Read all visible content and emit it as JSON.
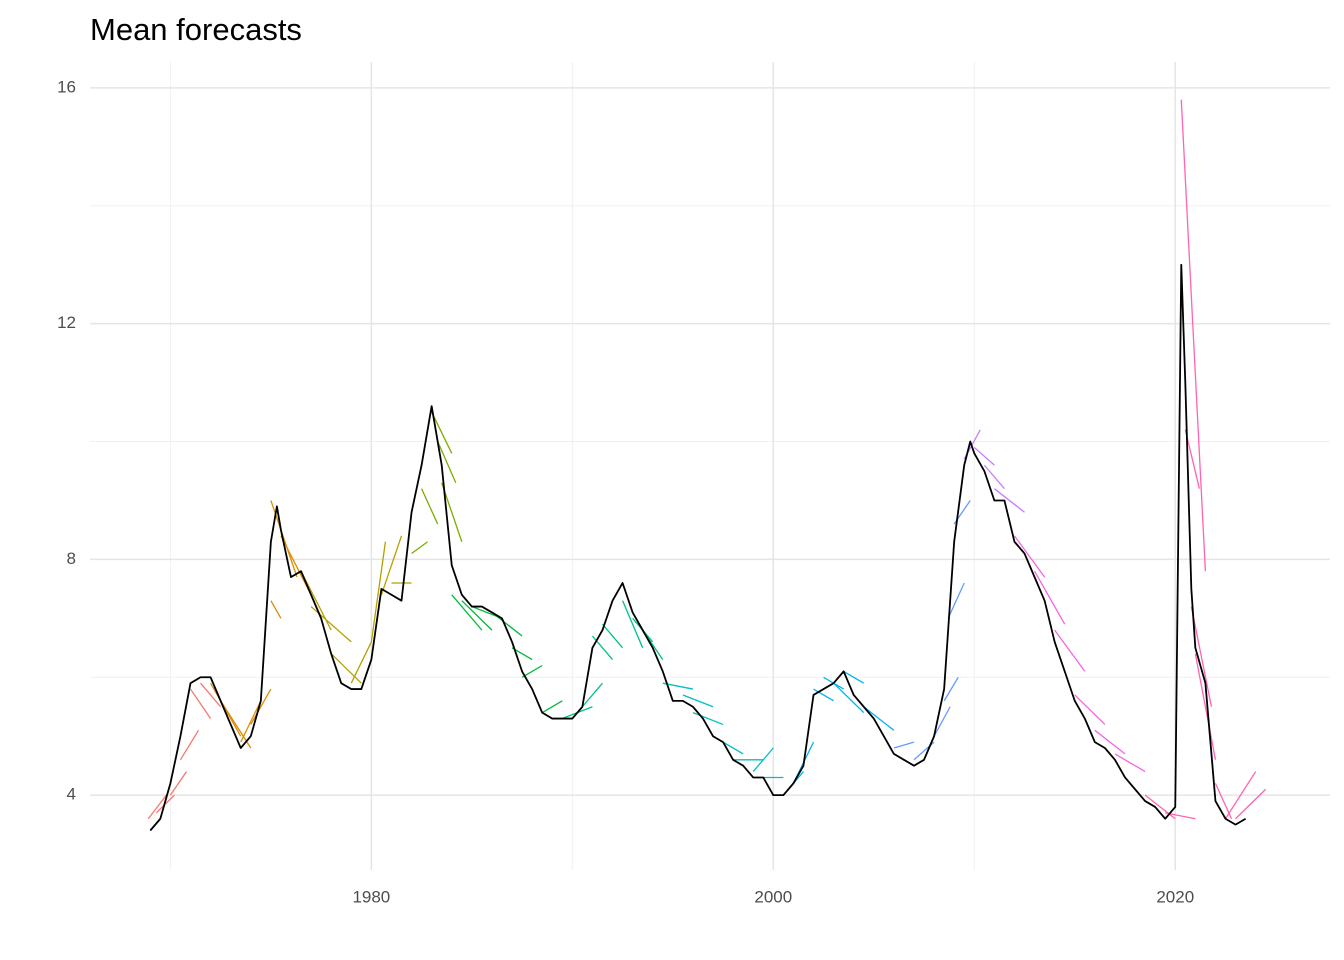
{
  "chart_data": {
    "type": "line",
    "title": "Mean forecasts",
    "xlim": [
      1966.0,
      2027.7
    ],
    "ylim": [
      2.73,
      16.44
    ],
    "xticks": [
      1980,
      2000,
      2020
    ],
    "yticks": [
      4,
      8,
      12,
      16
    ],
    "x_minor_grid": [
      1970,
      1990,
      2010
    ],
    "y_minor_grid": [
      6,
      10,
      14
    ],
    "grid": true,
    "series": [
      {
        "color": "#000000",
        "x": [
          1969.0,
          1969.5,
          1970.0,
          1970.5,
          1971.0,
          1971.5,
          1972.0,
          1972.5,
          1973.0,
          1973.5,
          1974.0,
          1974.5,
          1975.0,
          1975.3,
          1975.5,
          1976.0,
          1976.5,
          1977.0,
          1977.5,
          1978.0,
          1978.5,
          1979.0,
          1979.5,
          1980.0,
          1980.5,
          1981.0,
          1981.5,
          1982.0,
          1982.5,
          1983.0,
          1983.5,
          1984.0,
          1984.5,
          1985.0,
          1985.5,
          1986.0,
          1986.5,
          1987.0,
          1987.5,
          1988.0,
          1988.5,
          1989.0,
          1989.5,
          1990.0,
          1990.5,
          1991.0,
          1991.5,
          1992.0,
          1992.5,
          1993.0,
          1993.5,
          1994.0,
          1994.5,
          1995.0,
          1995.5,
          1996.0,
          1996.5,
          1997.0,
          1997.5,
          1998.0,
          1998.5,
          1999.0,
          1999.5,
          2000.0,
          2000.5,
          2001.0,
          2001.5,
          2002.0,
          2002.5,
          2003.0,
          2003.5,
          2004.0,
          2004.5,
          2005.0,
          2005.5,
          2006.0,
          2006.5,
          2007.0,
          2007.5,
          2008.0,
          2008.5,
          2009.0,
          2009.5,
          2009.8,
          2010.0,
          2010.5,
          2011.0,
          2011.5,
          2012.0,
          2012.5,
          2013.0,
          2013.5,
          2014.0,
          2014.5,
          2015.0,
          2015.5,
          2016.0,
          2016.5,
          2017.0,
          2017.5,
          2018.0,
          2018.5,
          2019.0,
          2019.5,
          2020.0,
          2020.3,
          2020.5,
          2020.8,
          2021.0,
          2021.5,
          2022.0,
          2022.5,
          2023.0,
          2023.5
        ],
        "values": [
          3.4,
          3.6,
          4.2,
          5.0,
          5.9,
          6.0,
          6.0,
          5.6,
          5.2,
          4.8,
          5.0,
          5.6,
          8.3,
          8.9,
          8.5,
          7.7,
          7.8,
          7.4,
          7.0,
          6.4,
          5.9,
          5.8,
          5.8,
          6.3,
          7.5,
          7.4,
          7.3,
          8.8,
          9.6,
          10.6,
          9.6,
          7.9,
          7.4,
          7.2,
          7.2,
          7.1,
          7.0,
          6.6,
          6.1,
          5.8,
          5.4,
          5.3,
          5.3,
          5.3,
          5.5,
          6.5,
          6.8,
          7.3,
          7.6,
          7.1,
          6.8,
          6.5,
          6.1,
          5.6,
          5.6,
          5.5,
          5.3,
          5.0,
          4.9,
          4.6,
          4.5,
          4.3,
          4.3,
          4.0,
          4.0,
          4.2,
          4.5,
          5.7,
          5.8,
          5.9,
          6.1,
          5.7,
          5.5,
          5.3,
          5.0,
          4.7,
          4.6,
          4.5,
          4.6,
          5.0,
          5.8,
          8.3,
          9.6,
          10.0,
          9.8,
          9.5,
          9.0,
          9.0,
          8.3,
          8.1,
          7.7,
          7.3,
          6.6,
          6.1,
          5.6,
          5.3,
          4.9,
          4.8,
          4.6,
          4.3,
          4.1,
          3.9,
          3.8,
          3.6,
          3.8,
          13.0,
          11.0,
          7.5,
          6.5,
          5.9,
          3.9,
          3.6,
          3.5,
          3.6
        ]
      },
      {
        "color": "#F8766D",
        "x": [
          1968.9,
          1969.8,
          null,
          1969.3,
          1970.2,
          null,
          1970.0,
          1970.8,
          null,
          1970.5,
          1971.4,
          null,
          1971.0,
          1972.0,
          null,
          1971.5,
          1972.5
        ],
        "values": [
          3.6,
          4.0,
          null,
          3.7,
          4.0,
          null,
          4.0,
          4.4,
          null,
          4.6,
          5.1,
          null,
          5.8,
          5.3,
          null,
          5.9,
          5.5
        ]
      },
      {
        "color": "#DE8C00",
        "x": [
          1972.0,
          1973.5,
          null,
          1972.5,
          1974.0,
          null,
          1973.5,
          1974.5,
          null,
          1974.0,
          1975.0,
          null,
          1975.0,
          1976.3,
          null,
          1975.5,
          1977.0,
          null,
          1975.0,
          1975.5
        ],
        "values": [
          5.9,
          5.0,
          null,
          5.6,
          4.8,
          null,
          4.9,
          5.6,
          null,
          5.2,
          5.8,
          null,
          9.0,
          7.7,
          null,
          8.4,
          7.4,
          null,
          7.3,
          7.0
        ]
      },
      {
        "color": "#B79F00",
        "x": [
          1976.5,
          1978.0,
          null,
          1977.0,
          1979.0,
          null,
          1978.0,
          1979.5,
          null,
          1979.0,
          1980.0,
          null,
          1980.0,
          1980.7,
          null,
          1980.5,
          1981.5,
          null,
          1981.0,
          1982.0
        ],
        "values": [
          7.8,
          6.8,
          null,
          7.2,
          6.6,
          null,
          6.4,
          5.9,
          null,
          5.9,
          6.6,
          null,
          6.6,
          8.3,
          null,
          7.4,
          8.4,
          null,
          7.6,
          7.6
        ]
      },
      {
        "color": "#7CAE00",
        "x": [
          1982.0,
          1982.8,
          null,
          1982.5,
          1983.3,
          null,
          1983.0,
          1984.0,
          null,
          1983.3,
          1984.2,
          null,
          1983.5,
          1984.5
        ],
        "values": [
          8.1,
          8.3,
          null,
          9.2,
          8.6,
          null,
          10.5,
          9.8,
          null,
          10.0,
          9.3,
          null,
          9.3,
          8.3
        ]
      },
      {
        "color": "#00BA38",
        "x": [
          1984.0,
          1985.5,
          null,
          1984.5,
          1986.0,
          null,
          1985.0,
          1986.5,
          null,
          1986.0,
          1987.5,
          null,
          1987.0,
          1988.0,
          null,
          1987.5,
          1988.5,
          null,
          1988.5,
          1989.5
        ],
        "values": [
          7.4,
          6.8,
          null,
          7.3,
          6.8,
          null,
          7.2,
          7.0,
          null,
          7.1,
          6.7,
          null,
          6.5,
          6.3,
          null,
          6.0,
          6.2,
          null,
          5.4,
          5.6
        ]
      },
      {
        "color": "#00C08B",
        "x": [
          1989.5,
          1991.0,
          null,
          1990.5,
          1991.5,
          null,
          1991.0,
          1992.0,
          null,
          1991.5,
          1992.5,
          null,
          1992.5,
          1993.5,
          null,
          1993.0,
          1994.0,
          null,
          1993.5,
          1994.5
        ],
        "values": [
          5.3,
          5.5,
          null,
          5.5,
          5.9,
          null,
          6.7,
          6.3,
          null,
          6.9,
          6.5,
          null,
          7.3,
          6.5,
          null,
          7.0,
          6.6,
          null,
          6.8,
          6.3
        ]
      },
      {
        "color": "#00BFC4",
        "x": [
          1994.5,
          1996.0,
          null,
          1995.5,
          1997.0,
          null,
          1996.0,
          1997.5,
          null,
          1997.0,
          1998.5,
          null,
          1998.0,
          1999.5,
          null,
          1999.0,
          2000.0,
          null,
          1999.5,
          2000.5
        ],
        "values": [
          5.9,
          5.8,
          null,
          5.7,
          5.5,
          null,
          5.4,
          5.2,
          null,
          5.0,
          4.7,
          null,
          4.6,
          4.6,
          null,
          4.4,
          4.8,
          null,
          4.3,
          4.3
        ]
      },
      {
        "color": "#00B4F0",
        "x": [
          2000.5,
          2001.5,
          null,
          2001.0,
          2002.0,
          null,
          2002.0,
          2003.0,
          null,
          2002.5,
          2003.5,
          null,
          2003.0,
          2004.5,
          null,
          2003.5,
          2004.5,
          null,
          2004.5,
          2006.0
        ],
        "values": [
          4.0,
          4.4,
          null,
          4.2,
          4.9,
          null,
          5.8,
          5.6,
          null,
          6.0,
          5.8,
          null,
          5.9,
          5.4,
          null,
          6.1,
          5.9,
          null,
          5.5,
          5.1
        ]
      },
      {
        "color": "#619CFF",
        "x": [
          2006.0,
          2007.0,
          null,
          2007.0,
          2008.0,
          null,
          2008.0,
          2008.8,
          null,
          2008.5,
          2009.2,
          null,
          2008.7,
          2009.5,
          null,
          2009.0,
          2009.8
        ],
        "values": [
          4.8,
          4.9,
          null,
          4.6,
          4.9,
          null,
          5.0,
          5.5,
          null,
          5.6,
          6.0,
          null,
          7.0,
          7.6,
          null,
          8.6,
          9.0
        ]
      },
      {
        "color": "#C77CFF",
        "x": [
          2009.5,
          2010.3,
          null,
          2010.0,
          2011.0,
          null,
          2010.5,
          2011.5,
          null,
          2011.0,
          2012.5
        ],
        "values": [
          9.7,
          10.2,
          null,
          9.9,
          9.6,
          null,
          9.6,
          9.2,
          null,
          9.2,
          8.8
        ]
      },
      {
        "color": "#F564E3",
        "x": [
          2012.0,
          2013.5,
          null,
          2013.0,
          2014.5,
          null,
          2014.0,
          2015.5,
          null,
          2015.0,
          2016.5,
          null,
          2016.0,
          2017.5,
          null,
          2017.0,
          2018.5
        ],
        "values": [
          8.4,
          7.7,
          null,
          7.8,
          6.9,
          null,
          6.8,
          6.1,
          null,
          5.7,
          5.2,
          null,
          5.1,
          4.7,
          null,
          4.7,
          4.4
        ]
      },
      {
        "color": "#FF64B0",
        "x": [
          2018.5,
          2020.0,
          null,
          2019.5,
          2021.0,
          null,
          2020.3,
          2021.5,
          null,
          2020.5,
          2021.2,
          null,
          2020.8,
          2021.8,
          null,
          2021.0,
          2022.0,
          null,
          2022.0,
          2022.8,
          null,
          2022.5,
          2024.0,
          null,
          2023.0,
          2024.5
        ],
        "values": [
          4.0,
          3.6,
          null,
          3.7,
          3.6,
          null,
          15.8,
          7.8,
          null,
          10.2,
          9.2,
          null,
          7.2,
          5.5,
          null,
          6.4,
          4.6,
          null,
          4.2,
          3.6,
          null,
          3.6,
          4.4,
          null,
          3.6,
          4.1
        ]
      }
    ]
  }
}
